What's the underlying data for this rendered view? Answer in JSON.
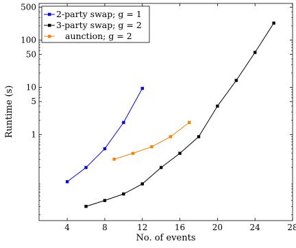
{
  "chart_data": {
    "type": "line",
    "title": "",
    "xlabel": "No. of events",
    "ylabel": "Runtime (s)",
    "y_scale": "log",
    "xlim": [
      1,
      28
    ],
    "ylim": [
      0.015,
      600
    ],
    "x_ticks": [
      4,
      8,
      12,
      16,
      20,
      24,
      28
    ],
    "y_ticks": [
      1,
      5,
      10,
      50,
      100,
      500
    ],
    "grid": false,
    "legend_position": "top-left",
    "series": [
      {
        "name": "2-party swap; g = 1",
        "color": "#0000ff",
        "x": [
          4,
          6,
          8,
          10,
          12
        ],
        "y": [
          0.1,
          0.2,
          0.5,
          1.8,
          9.5
        ]
      },
      {
        "name": "3-party swap; g = 2",
        "color": "#000000",
        "x": [
          6,
          8,
          10,
          12,
          14,
          16,
          18,
          20,
          22,
          24,
          26
        ],
        "y": [
          0.03,
          0.04,
          0.055,
          0.09,
          0.2,
          0.4,
          0.9,
          4.0,
          14,
          55,
          230
        ]
      },
      {
        "name": "aunction; g = 2",
        "color": "#ff8000",
        "x": [
          9,
          11,
          13,
          15,
          17
        ],
        "y": [
          0.3,
          0.4,
          0.55,
          0.9,
          1.8
        ]
      }
    ]
  }
}
